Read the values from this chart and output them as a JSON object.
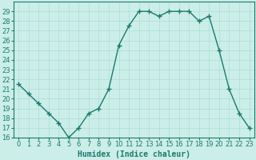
{
  "x": [
    0,
    1,
    2,
    3,
    4,
    5,
    6,
    7,
    8,
    9,
    10,
    11,
    12,
    13,
    14,
    15,
    16,
    17,
    18,
    19,
    20,
    21,
    22,
    23
  ],
  "y": [
    21.5,
    20.5,
    19.5,
    18.5,
    17.5,
    16.0,
    17.0,
    18.5,
    19.0,
    21.0,
    25.5,
    27.5,
    29.0,
    29.0,
    28.5,
    29.0,
    29.0,
    29.0,
    28.0,
    28.5,
    25.0,
    21.0,
    18.5,
    17.0
  ],
  "line_color": "#1a7a6e",
  "marker": "+",
  "marker_size": 4,
  "line_width": 1.0,
  "bg_color": "#cceee8",
  "grid_color": "#aaddd6",
  "xlabel": "Humidex (Indice chaleur)",
  "xlabel_fontsize": 7,
  "tick_fontsize": 6,
  "ylim": [
    16,
    30
  ],
  "xlim": [
    -0.5,
    23.5
  ],
  "yticks": [
    16,
    17,
    18,
    19,
    20,
    21,
    22,
    23,
    24,
    25,
    26,
    27,
    28,
    29
  ],
  "xticks": [
    0,
    1,
    2,
    3,
    4,
    5,
    6,
    7,
    8,
    9,
    10,
    11,
    12,
    13,
    14,
    15,
    16,
    17,
    18,
    19,
    20,
    21,
    22,
    23
  ]
}
